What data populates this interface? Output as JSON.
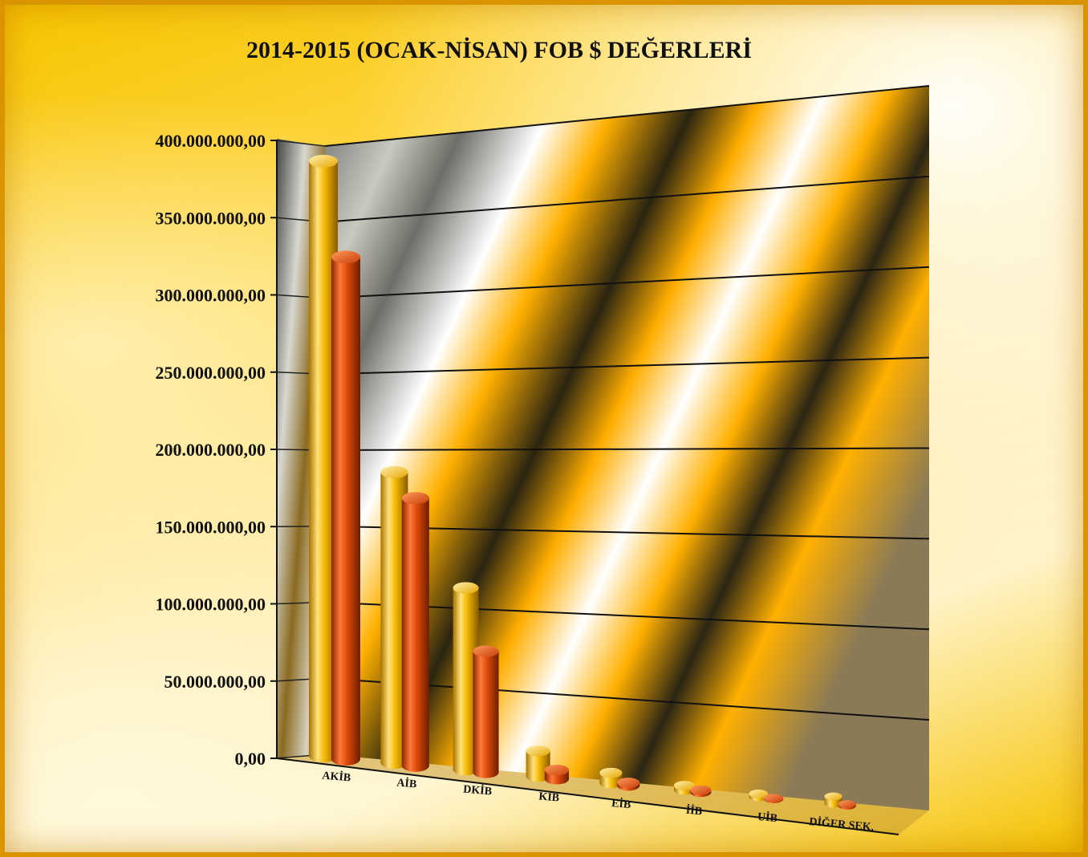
{
  "chart_data": {
    "type": "bar",
    "title": "2014-2015 (OCAK-NİSAN) FOB $ DEĞERLERİ",
    "categories": [
      "AKİB",
      "AİB",
      "DKİB",
      "KİB",
      "EİB",
      "İİB",
      "UİB",
      "DİĞER SEK."
    ],
    "series": [
      {
        "color": "#f5b800",
        "values": [
          385000000,
          190000000,
          120000000,
          17000000,
          7000000,
          3000000,
          2000000,
          5000000
        ]
      },
      {
        "color": "#e04a0a",
        "values": [
          325000000,
          175000000,
          80000000,
          6000000,
          2000000,
          1500000,
          500000,
          1000000
        ]
      }
    ],
    "y_ticks": [
      "0,00",
      "50.000.000,00",
      "100.000.000,00",
      "150.000.000,00",
      "200.000.000,00",
      "250.000.000,00",
      "300.000.000,00",
      "350.000.000,00",
      "400.000.000,00"
    ],
    "ylim": [
      0,
      400000000
    ],
    "grid": true,
    "legend": "none"
  }
}
